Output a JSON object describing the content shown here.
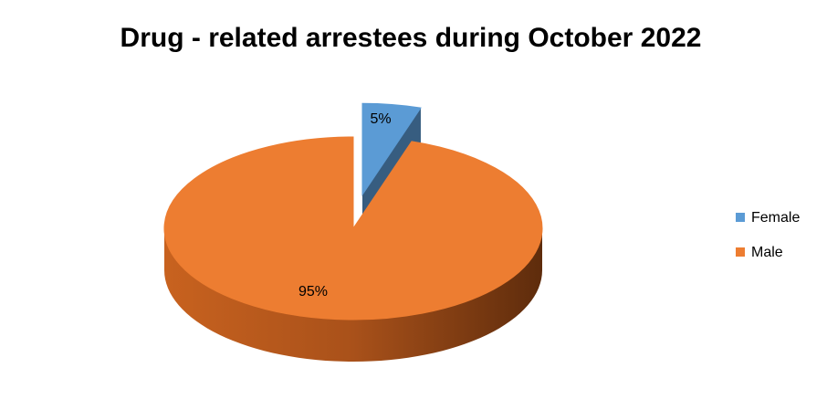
{
  "chart_data": {
    "type": "pie",
    "title": "Drug - related arrestees during October 2022",
    "categories": [
      "Female",
      "Male"
    ],
    "values": [
      5,
      95
    ],
    "value_labels": [
      "5%",
      "95%"
    ],
    "colors": [
      "#5b9bd5",
      "#ed7d31"
    ],
    "legend": "right"
  }
}
